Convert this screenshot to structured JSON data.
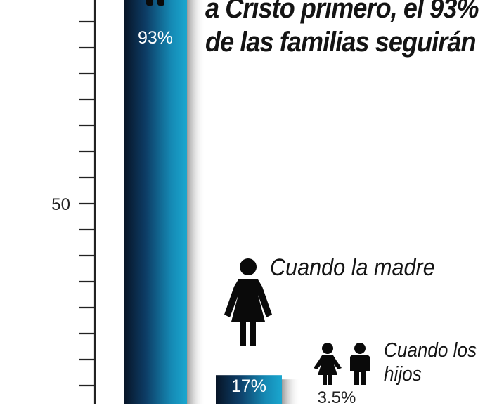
{
  "chart_data": {
    "type": "bar",
    "title_lines": [
      "a Cristo primero, el 93%",
      "de las familias seguirán"
    ],
    "y_tick_labels": [
      {
        "value": 50,
        "label": "50"
      }
    ],
    "y_tick_step": 5,
    "ylim": [
      0,
      116
    ],
    "bars": [
      {
        "label_lines": [],
        "value": 93,
        "data_label": "93%",
        "icon": "father-icon"
      },
      {
        "label_lines": [
          "Cuando la madre"
        ],
        "value": 17,
        "data_label": "17%",
        "icon": "woman-icon"
      },
      {
        "label_lines": [
          "Cuando los",
          "hijos"
        ],
        "value": 3.5,
        "data_label": "3.5%",
        "icon": "children-icon"
      }
    ],
    "colors": {
      "bar_dark": "#0b1d3a",
      "bar_mid": "#0f5a86",
      "bar_light": "#1aa0c8",
      "axis": "#222222",
      "text": "#141414"
    }
  }
}
